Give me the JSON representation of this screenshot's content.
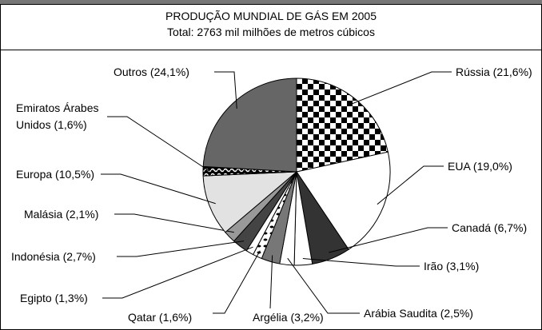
{
  "chart_data": {
    "type": "pie",
    "title": "PRODUÇÃO MUNDIAL DE GÁS EM 2005",
    "subtitle": "Total: 2763 mil milhões de metros cúbicos",
    "categories": [
      "Rússia (21,6%)",
      "EUA (19,0%)",
      "Canadá (6,7%)",
      "Irão (3,1%)",
      "Arábia Saudita (2,5%)",
      "Argélia (3,2%)",
      "Qatar (1,6%)",
      "Egipto (1,3%)",
      "Indonésia (2,7%)",
      "Malásia (2,1%)",
      "Europa (10,5%)",
      "Emiratos Árabes\nUnidos (1,6%)",
      "Outros (24,1%)"
    ],
    "values": [
      21.6,
      19.0,
      6.7,
      3.1,
      2.5,
      3.2,
      1.6,
      1.3,
      2.7,
      2.1,
      10.5,
      1.6,
      24.1
    ],
    "colors": [
      "#000000",
      "#ffffff",
      "#333333",
      "#ffffff",
      "#ffffff",
      "#777777",
      "#ffffff",
      "#ffffff",
      "#444444",
      "#999999",
      "#e2e2e2",
      "#000000",
      "#666666"
    ],
    "patterns": [
      "checker",
      null,
      null,
      null,
      null,
      null,
      "dots",
      null,
      null,
      null,
      null,
      "wave",
      null
    ]
  }
}
